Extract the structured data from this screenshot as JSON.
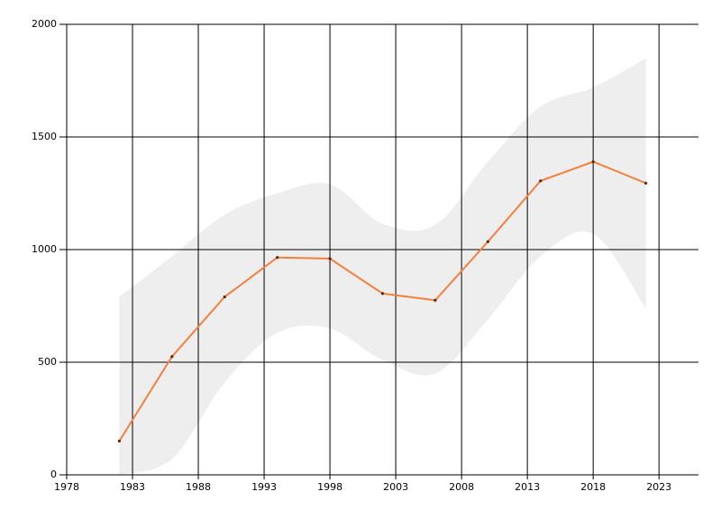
{
  "chart_data": {
    "type": "line",
    "x": [
      1982,
      1986,
      1990,
      1994,
      1998,
      2002,
      2006,
      2010,
      2014,
      2018,
      2022
    ],
    "series": [
      {
        "color": "#f57f3a",
        "values": [
          150,
          525,
          790,
          965,
          960,
          805,
          775,
          1035,
          1305,
          1390,
          1295
        ]
      }
    ],
    "band": {
      "color": "#eeeeee",
      "lower": [
        0,
        70,
        410,
        630,
        650,
        510,
        450,
        690,
        970,
        1070,
        740
      ],
      "upper": [
        790,
        970,
        1155,
        1250,
        1290,
        1115,
        1110,
        1390,
        1635,
        1720,
        1850
      ]
    },
    "marker_color": "#5a2a10",
    "xlim": [
      1978,
      2026
    ],
    "xticks": [
      1978,
      1983,
      1988,
      1993,
      1998,
      2003,
      2008,
      2013,
      2018,
      2023
    ],
    "ylim": [
      0,
      2000
    ],
    "yticks": [
      0,
      500,
      1000,
      1500,
      2000
    ],
    "grid": true
  }
}
